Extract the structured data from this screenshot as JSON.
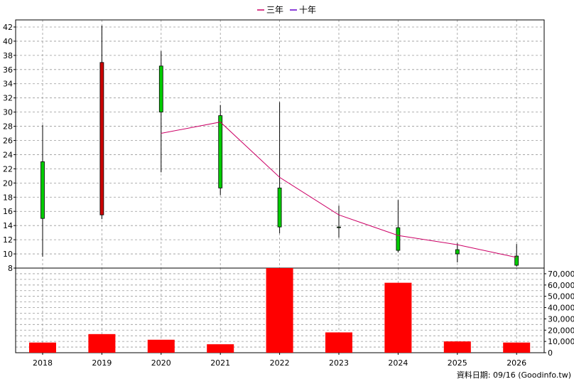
{
  "chart_data": [
    {
      "type": "candlestick",
      "legend": [
        {
          "name": "三年",
          "color": "#cc0066"
        },
        {
          "name": "十年",
          "color": "#6600cc"
        }
      ],
      "legend_position": "top-center",
      "x": [
        "2018",
        "2019",
        "2020",
        "2021",
        "2022",
        "2023",
        "2024",
        "2025",
        "2026"
      ],
      "ylim": [
        8,
        43
      ],
      "yticks": [
        "8",
        "10",
        "12",
        "14",
        "16",
        "18",
        "20",
        "22",
        "24",
        "26",
        "28",
        "30",
        "32",
        "34",
        "36",
        "38",
        "40",
        "42"
      ],
      "grid": true,
      "candles": [
        {
          "x": "2018",
          "open": 15.0,
          "close": 23.0,
          "high": 28.2,
          "low": 9.6,
          "color": "#00cc00"
        },
        {
          "x": "2019",
          "open": 37.0,
          "close": 15.5,
          "high": 42.2,
          "low": 14.9,
          "color": "#cc0000"
        },
        {
          "x": "2020",
          "open": 30.0,
          "close": 36.5,
          "high": 38.6,
          "low": 21.5,
          "color": "#00cc00"
        },
        {
          "x": "2021",
          "open": 19.3,
          "close": 29.5,
          "high": 31.0,
          "low": 18.3,
          "color": "#00cc00"
        },
        {
          "x": "2022",
          "open": 13.8,
          "close": 19.3,
          "high": 31.4,
          "low": 12.9,
          "color": "#00cc00"
        },
        {
          "x": "2023",
          "open": 13.8,
          "close": 13.8,
          "high": 16.8,
          "low": 12.3,
          "color": "#00cc00"
        },
        {
          "x": "2024",
          "open": 10.5,
          "close": 13.7,
          "high": 17.6,
          "low": 10.2,
          "color": "#00cc00"
        },
        {
          "x": "2025",
          "open": 10.0,
          "close": 10.6,
          "high": 11.5,
          "low": 8.8,
          "color": "#00cc00"
        },
        {
          "x": "2026",
          "open": 8.4,
          "close": 9.7,
          "high": 11.4,
          "low": 8.2,
          "color": "#00cc00"
        }
      ],
      "lines": [
        {
          "name": "三年",
          "color": "#cc0066",
          "points": [
            {
              "x": "2020",
              "y": 27.0
            },
            {
              "x": "2021",
              "y": 28.6
            },
            {
              "x": "2022",
              "y": 20.8
            },
            {
              "x": "2023",
              "y": 15.5
            },
            {
              "x": "2024",
              "y": 12.6
            },
            {
              "x": "2025",
              "y": 11.3
            },
            {
              "x": "2026",
              "y": 9.5
            }
          ]
        }
      ]
    },
    {
      "type": "bar",
      "categories": [
        "2018",
        "2019",
        "2020",
        "2021",
        "2022",
        "2023",
        "2024",
        "2025",
        "2026"
      ],
      "values": [
        9000,
        16500,
        11500,
        7500,
        75000,
        18000,
        62000,
        10000,
        9000
      ],
      "ylim": [
        0,
        75000
      ],
      "yticks": [
        "0",
        "10,000",
        "20,000",
        "30,000",
        "40,000",
        "50,000",
        "60,000",
        "70,000"
      ],
      "bar_color": "#ff0000",
      "grid": true
    }
  ],
  "footer": {
    "source_label": "資料日期: 09/16  (Goodinfo.tw)"
  }
}
